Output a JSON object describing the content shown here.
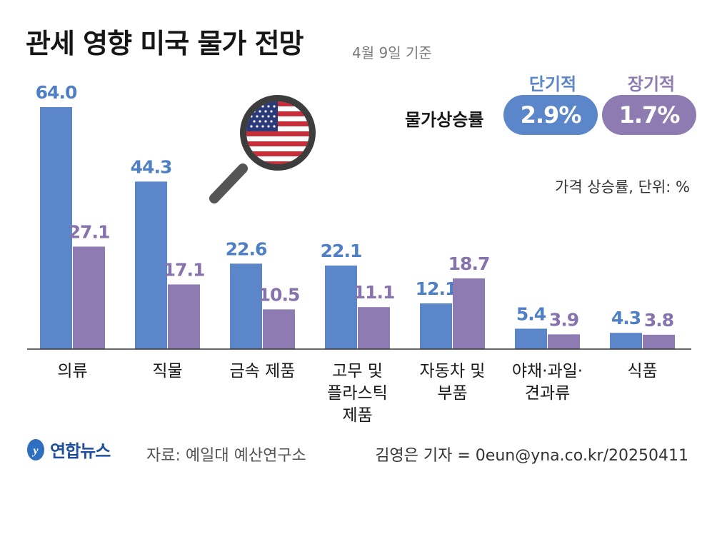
{
  "title": "관세 영향 미국 물가 전망",
  "date_note": "4월 9일 기준",
  "rate_label": "물가상승률",
  "pills": [
    {
      "header": "단기적",
      "value": "2.9%",
      "color": "#5b86c9"
    },
    {
      "header": "장기적",
      "value": "1.7%",
      "color": "#8e7bb1"
    }
  ],
  "unit_note": "가격 상승률, 단위: %",
  "chart_data": {
    "type": "bar",
    "categories": [
      [
        "의류"
      ],
      [
        "직물"
      ],
      [
        "금속 제품"
      ],
      [
        "고무 및",
        "플라스틱",
        "제품"
      ],
      [
        "자동차 및",
        "부품"
      ],
      [
        "야채·과일·",
        "견과류"
      ],
      [
        "식품"
      ]
    ],
    "series": [
      {
        "name": "단기적",
        "values": [
          64.0,
          44.3,
          22.6,
          22.1,
          12.1,
          5.4,
          4.3
        ],
        "labels": [
          "64.0",
          "44.3",
          "22.6",
          "22.1",
          "12.1",
          "5.4",
          "4.3"
        ],
        "color": "#5b86c9",
        "label_color": "#4f7fc4"
      },
      {
        "name": "장기적",
        "values": [
          27.1,
          17.1,
          10.5,
          11.1,
          18.7,
          3.9,
          3.8
        ],
        "labels": [
          "27.1",
          "17.1",
          "10.5",
          "11.1",
          "18.7",
          "3.9",
          "3.8"
        ],
        "color": "#8e7bb1",
        "label_color": "#8672ad"
      }
    ],
    "ylim": [
      0,
      64
    ]
  },
  "footer": {
    "logo_text": "연합뉴스",
    "source": "자료: 예일대 예산연구소",
    "credit": "김영은 기자 = 0eun@yna.co.kr/20250411"
  }
}
